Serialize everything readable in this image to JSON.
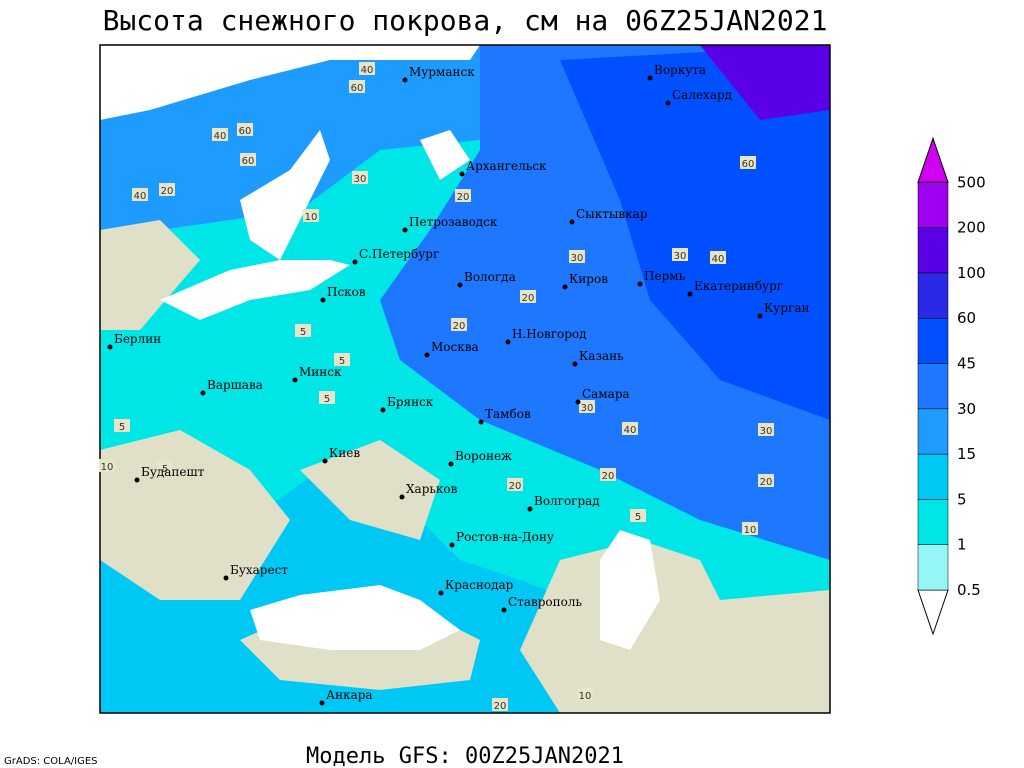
{
  "header": {
    "title": "Высота снежного покрова, см на 06Z25JAN2021"
  },
  "footer": {
    "model": "Модель GFS: 00Z25JAN2021",
    "credit": "GrADS: COLA/IGES"
  },
  "legend": {
    "levels": [
      0.5,
      1,
      5,
      15,
      30,
      45,
      60,
      100,
      200,
      500
    ],
    "colors": [
      "#ffffff",
      "#96f5f5",
      "#00e6e6",
      "#00c8f5",
      "#1e9bff",
      "#1e78ff",
      "#0050ff",
      "#2a2ae6",
      "#5a00e6",
      "#a000f0",
      "#d200f0"
    ]
  },
  "cities": [
    "Мурманск",
    "Воркута",
    "Салехард",
    "Архангельск",
    "Сыктывкар",
    "Петрозаводск",
    "С.Петербург",
    "Вологда",
    "Киров",
    "Пермь",
    "Екатеринбург",
    "Курган",
    "Псков",
    "Берлин",
    "Москва",
    "Н.Новгород",
    "Казань",
    "Минск",
    "Варшава",
    "Брянск",
    "Самара",
    "Тамбов",
    "Киев",
    "Воронеж",
    "Будапешт",
    "Харьков",
    "Волгоград",
    "Ростов-на-Дону",
    "Бухарест",
    "Краснодар",
    "Ставрополь",
    "Анкара"
  ],
  "contour_labels": [
    40,
    60,
    40,
    20,
    60,
    40,
    30,
    10,
    20,
    60,
    60,
    30,
    40,
    30,
    20,
    20,
    5,
    5,
    5,
    5,
    10,
    20,
    30,
    40,
    30,
    20,
    20,
    10,
    5,
    5,
    10,
    20
  ]
}
